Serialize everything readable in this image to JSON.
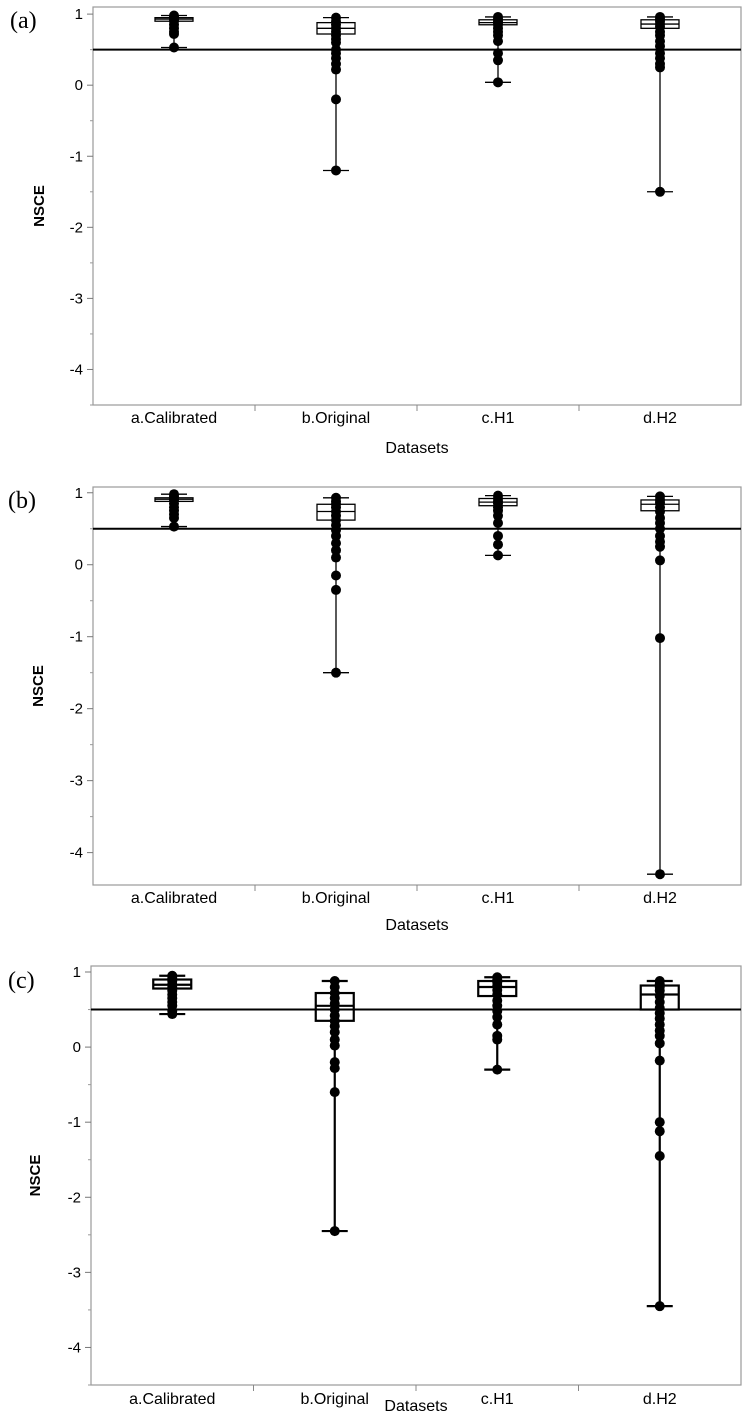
{
  "chart_data": [
    {
      "type": "box",
      "panel_label": "(a)",
      "xlabel": "Datasets",
      "ylabel": "NSCE",
      "ylim": [
        -4.5,
        1.1
      ],
      "yticks": [
        1,
        0,
        -1,
        -2,
        -3,
        -4
      ],
      "reference_line": 0.5,
      "categories": [
        "a.Calibrated",
        "b.Original",
        "c.H1",
        "d.H2"
      ],
      "boxes": [
        {
          "whisker_low": 0.53,
          "q1": 0.9,
          "median": 0.93,
          "q3": 0.95,
          "whisker_high": 0.98,
          "points": [
            0.98,
            0.96,
            0.94,
            0.92,
            0.9,
            0.85,
            0.8,
            0.75,
            0.72,
            0.53
          ]
        },
        {
          "whisker_low": -1.2,
          "q1": 0.72,
          "median": 0.8,
          "q3": 0.88,
          "whisker_high": 0.95,
          "points": [
            0.95,
            0.9,
            0.85,
            0.8,
            0.75,
            0.7,
            0.65,
            0.6,
            0.5,
            0.45,
            0.38,
            0.3,
            0.22,
            -0.2,
            -1.2
          ]
        },
        {
          "whisker_low": 0.04,
          "q1": 0.85,
          "median": 0.88,
          "q3": 0.92,
          "whisker_high": 0.96,
          "points": [
            0.96,
            0.93,
            0.9,
            0.88,
            0.85,
            0.8,
            0.75,
            0.7,
            0.62,
            0.45,
            0.35,
            0.04
          ]
        },
        {
          "whisker_low": -1.5,
          "q1": 0.8,
          "median": 0.86,
          "q3": 0.92,
          "whisker_high": 0.96,
          "points": [
            0.96,
            0.93,
            0.9,
            0.86,
            0.82,
            0.75,
            0.7,
            0.62,
            0.55,
            0.45,
            0.38,
            0.3,
            0.25,
            -1.5
          ]
        }
      ]
    },
    {
      "type": "box",
      "panel_label": "(b)",
      "xlabel": "Datasets",
      "ylabel": "NSCE",
      "ylim": [
        -4.45,
        1.08
      ],
      "yticks": [
        1,
        0,
        -1,
        -2,
        -3,
        -4
      ],
      "reference_line": 0.5,
      "categories": [
        "a.Calibrated",
        "b.Original",
        "c.H1",
        "d.H2"
      ],
      "boxes": [
        {
          "whisker_low": 0.53,
          "q1": 0.88,
          "median": 0.91,
          "q3": 0.93,
          "whisker_high": 0.98,
          "points": [
            0.98,
            0.95,
            0.92,
            0.9,
            0.85,
            0.8,
            0.75,
            0.7,
            0.65,
            0.53
          ]
        },
        {
          "whisker_low": -1.5,
          "q1": 0.62,
          "median": 0.74,
          "q3": 0.84,
          "whisker_high": 0.93,
          "points": [
            0.93,
            0.88,
            0.84,
            0.8,
            0.74,
            0.68,
            0.62,
            0.55,
            0.48,
            0.4,
            0.3,
            0.2,
            0.1,
            -0.15,
            -0.35,
            -1.5
          ]
        },
        {
          "whisker_low": 0.13,
          "q1": 0.82,
          "median": 0.87,
          "q3": 0.92,
          "whisker_high": 0.96,
          "points": [
            0.96,
            0.92,
            0.88,
            0.85,
            0.8,
            0.75,
            0.68,
            0.58,
            0.4,
            0.28,
            0.13
          ]
        },
        {
          "whisker_low": -4.3,
          "q1": 0.75,
          "median": 0.84,
          "q3": 0.9,
          "whisker_high": 0.95,
          "points": [
            0.95,
            0.9,
            0.86,
            0.8,
            0.74,
            0.65,
            0.58,
            0.5,
            0.4,
            0.32,
            0.25,
            0.06,
            -1.02,
            -4.3
          ]
        }
      ]
    },
    {
      "type": "box",
      "panel_label": "(c)",
      "xlabel": "Datasets",
      "ylabel": "NSCE",
      "ylim": [
        -4.5,
        1.08
      ],
      "yticks": [
        1,
        0,
        -1,
        -2,
        -3,
        -4
      ],
      "reference_line": 0.5,
      "categories": [
        "a.Calibrated",
        "b.Original",
        "c.H1",
        "d.H2"
      ],
      "boxes": [
        {
          "whisker_low": 0.44,
          "q1": 0.78,
          "median": 0.83,
          "q3": 0.9,
          "whisker_high": 0.95,
          "points": [
            0.95,
            0.92,
            0.88,
            0.84,
            0.8,
            0.75,
            0.7,
            0.65,
            0.6,
            0.55,
            0.48,
            0.44
          ]
        },
        {
          "whisker_low": -2.45,
          "q1": 0.35,
          "median": 0.55,
          "q3": 0.72,
          "whisker_high": 0.88,
          "points": [
            0.88,
            0.8,
            0.72,
            0.65,
            0.58,
            0.5,
            0.42,
            0.35,
            0.28,
            0.2,
            0.1,
            0.02,
            -0.2,
            -0.28,
            -0.6,
            -2.45
          ]
        },
        {
          "whisker_low": -0.3,
          "q1": 0.68,
          "median": 0.8,
          "q3": 0.88,
          "whisker_high": 0.93,
          "points": [
            0.93,
            0.9,
            0.86,
            0.82,
            0.76,
            0.7,
            0.62,
            0.55,
            0.48,
            0.4,
            0.3,
            0.15,
            0.1,
            -0.3
          ]
        },
        {
          "whisker_low": -3.45,
          "q1": 0.5,
          "median": 0.7,
          "q3": 0.82,
          "whisker_high": 0.88,
          "points": [
            0.88,
            0.84,
            0.8,
            0.75,
            0.68,
            0.6,
            0.52,
            0.45,
            0.38,
            0.3,
            0.22,
            0.15,
            0.05,
            -0.18,
            -1.0,
            -1.12,
            -1.45,
            -3.45
          ]
        }
      ]
    }
  ]
}
